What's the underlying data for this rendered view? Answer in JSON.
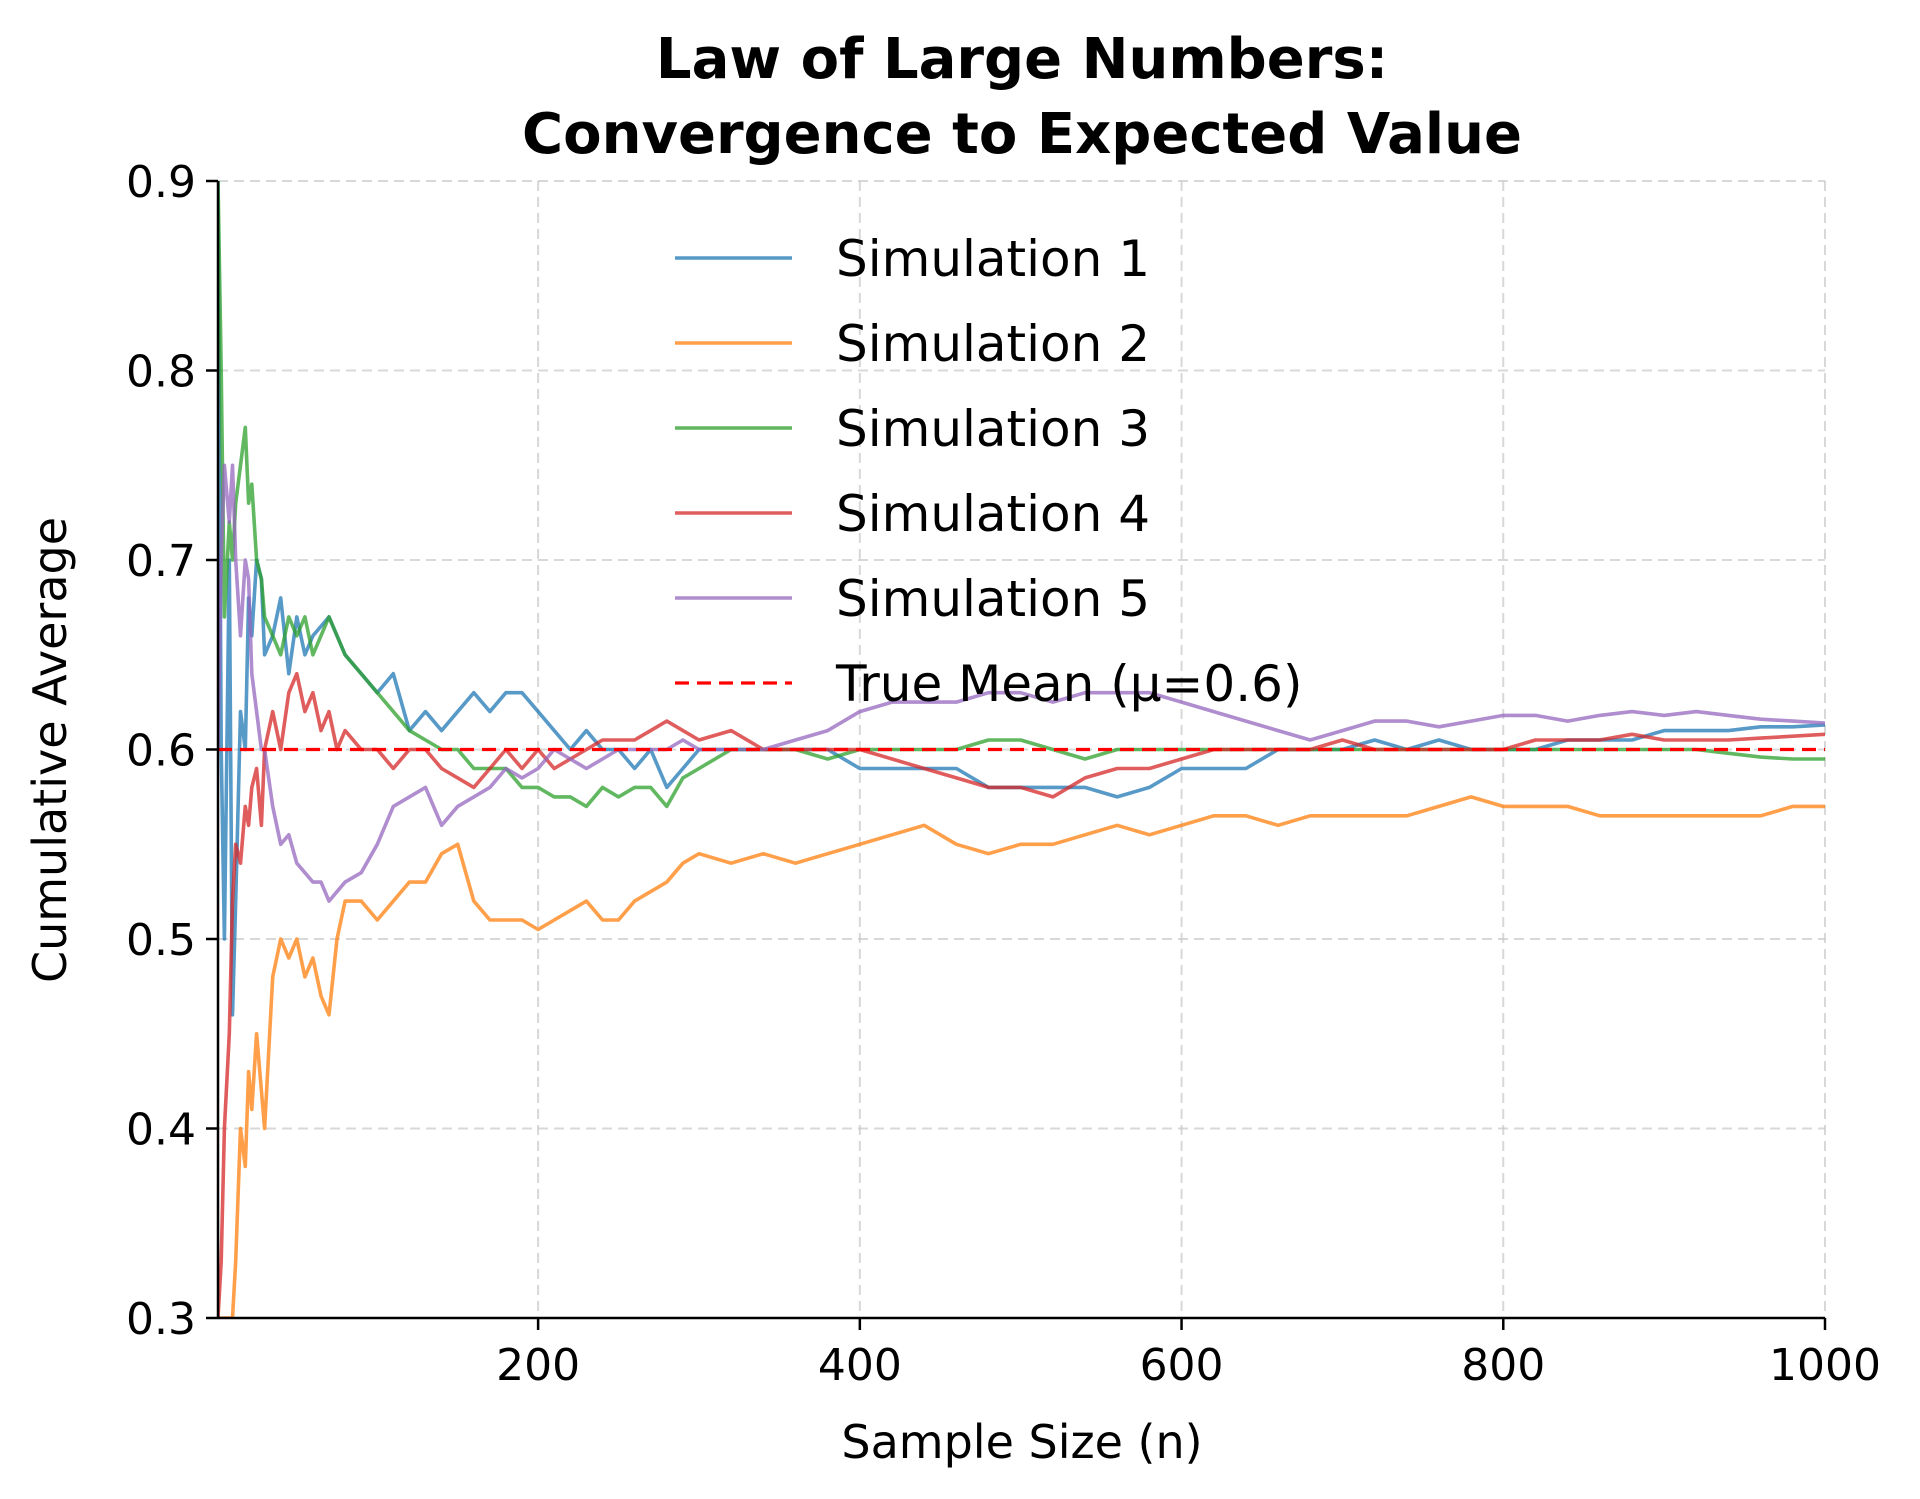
{
  "chart_data": {
    "type": "line",
    "title": [
      "Law of Large Numbers:",
      "Convergence to Expected Value"
    ],
    "xlabel": "Sample Size (n)",
    "ylabel": "Cumulative Average",
    "xlim": [
      1,
      1000
    ],
    "ylim": [
      0.3,
      0.9
    ],
    "xticks": [
      200,
      400,
      600,
      800,
      1000
    ],
    "yticks": [
      0.3,
      0.4,
      0.5,
      0.6,
      0.7,
      0.8,
      0.9
    ],
    "grid": true,
    "legend_position": "top-center",
    "series": [
      {
        "name": "Simulation 1",
        "color": "#1f77b4",
        "x": [
          1,
          3,
          5,
          8,
          10,
          12,
          15,
          18,
          20,
          22,
          25,
          28,
          30,
          35,
          40,
          45,
          50,
          55,
          60,
          70,
          80,
          90,
          100,
          110,
          120,
          130,
          140,
          150,
          160,
          170,
          180,
          190,
          200,
          210,
          220,
          230,
          240,
          250,
          260,
          270,
          280,
          290,
          300,
          320,
          340,
          360,
          380,
          400,
          420,
          440,
          460,
          480,
          500,
          520,
          540,
          560,
          580,
          600,
          620,
          640,
          660,
          680,
          700,
          720,
          740,
          760,
          780,
          800,
          820,
          840,
          860,
          880,
          900,
          920,
          940,
          960,
          980,
          1000
        ],
        "values": [
          0.9,
          0.6,
          0.5,
          0.7,
          0.46,
          0.52,
          0.62,
          0.6,
          0.68,
          0.66,
          0.7,
          0.69,
          0.65,
          0.66,
          0.68,
          0.64,
          0.67,
          0.65,
          0.66,
          0.67,
          0.65,
          0.64,
          0.63,
          0.64,
          0.61,
          0.62,
          0.61,
          0.62,
          0.63,
          0.62,
          0.63,
          0.63,
          0.62,
          0.61,
          0.6,
          0.61,
          0.6,
          0.6,
          0.59,
          0.6,
          0.58,
          0.59,
          0.6,
          0.6,
          0.6,
          0.6,
          0.6,
          0.59,
          0.59,
          0.59,
          0.59,
          0.58,
          0.58,
          0.58,
          0.58,
          0.575,
          0.58,
          0.59,
          0.59,
          0.59,
          0.6,
          0.6,
          0.6,
          0.605,
          0.6,
          0.605,
          0.6,
          0.6,
          0.6,
          0.605,
          0.605,
          0.605,
          0.61,
          0.61,
          0.61,
          0.612,
          0.612,
          0.613
        ]
      },
      {
        "name": "Simulation 2",
        "color": "#ff7f0e",
        "x": [
          1,
          3,
          5,
          8,
          10,
          12,
          15,
          18,
          20,
          22,
          25,
          28,
          30,
          35,
          40,
          45,
          50,
          55,
          60,
          65,
          70,
          75,
          80,
          90,
          100,
          110,
          120,
          130,
          140,
          150,
          160,
          170,
          180,
          190,
          200,
          210,
          220,
          230,
          240,
          250,
          260,
          270,
          280,
          290,
          300,
          320,
          340,
          360,
          380,
          400,
          420,
          440,
          460,
          480,
          500,
          520,
          540,
          560,
          580,
          600,
          620,
          640,
          660,
          680,
          700,
          720,
          740,
          760,
          780,
          800,
          820,
          840,
          860,
          880,
          900,
          920,
          940,
          960,
          980,
          1000
        ],
        "values": [
          0.3,
          0.3,
          0.3,
          0.3,
          0.3,
          0.33,
          0.4,
          0.38,
          0.43,
          0.41,
          0.45,
          0.42,
          0.4,
          0.48,
          0.5,
          0.49,
          0.5,
          0.48,
          0.49,
          0.47,
          0.46,
          0.5,
          0.52,
          0.52,
          0.51,
          0.52,
          0.53,
          0.53,
          0.545,
          0.55,
          0.52,
          0.51,
          0.51,
          0.51,
          0.505,
          0.51,
          0.515,
          0.52,
          0.51,
          0.51,
          0.52,
          0.525,
          0.53,
          0.54,
          0.545,
          0.54,
          0.545,
          0.54,
          0.545,
          0.55,
          0.555,
          0.56,
          0.55,
          0.545,
          0.55,
          0.55,
          0.555,
          0.56,
          0.555,
          0.56,
          0.565,
          0.565,
          0.56,
          0.565,
          0.565,
          0.565,
          0.565,
          0.57,
          0.575,
          0.57,
          0.57,
          0.57,
          0.565,
          0.565,
          0.565,
          0.565,
          0.565,
          0.565,
          0.57,
          0.57
        ]
      },
      {
        "name": "Simulation 3",
        "color": "#2ca02c",
        "x": [
          1,
          3,
          5,
          8,
          10,
          12,
          15,
          18,
          20,
          22,
          25,
          28,
          30,
          35,
          40,
          45,
          50,
          55,
          60,
          70,
          80,
          90,
          100,
          110,
          120,
          130,
          140,
          150,
          160,
          170,
          180,
          190,
          200,
          210,
          220,
          230,
          240,
          250,
          260,
          270,
          280,
          290,
          300,
          320,
          340,
          360,
          380,
          400,
          420,
          440,
          460,
          480,
          500,
          520,
          540,
          560,
          580,
          600,
          620,
          640,
          660,
          680,
          700,
          720,
          740,
          760,
          780,
          800,
          820,
          840,
          860,
          880,
          900,
          920,
          940,
          960,
          980,
          1000
        ],
        "values": [
          0.9,
          0.8,
          0.67,
          0.72,
          0.7,
          0.73,
          0.75,
          0.77,
          0.73,
          0.74,
          0.7,
          0.69,
          0.67,
          0.66,
          0.65,
          0.67,
          0.66,
          0.67,
          0.65,
          0.67,
          0.65,
          0.64,
          0.63,
          0.62,
          0.61,
          0.605,
          0.6,
          0.6,
          0.59,
          0.59,
          0.59,
          0.58,
          0.58,
          0.575,
          0.575,
          0.57,
          0.58,
          0.575,
          0.58,
          0.58,
          0.57,
          0.585,
          0.59,
          0.6,
          0.6,
          0.6,
          0.595,
          0.6,
          0.6,
          0.6,
          0.6,
          0.605,
          0.605,
          0.6,
          0.595,
          0.6,
          0.6,
          0.6,
          0.6,
          0.6,
          0.6,
          0.6,
          0.6,
          0.6,
          0.6,
          0.6,
          0.6,
          0.6,
          0.6,
          0.6,
          0.6,
          0.6,
          0.6,
          0.6,
          0.598,
          0.596,
          0.595,
          0.595
        ]
      },
      {
        "name": "Simulation 4",
        "color": "#d62728",
        "x": [
          1,
          3,
          5,
          8,
          10,
          12,
          15,
          18,
          20,
          22,
          25,
          28,
          30,
          35,
          40,
          45,
          50,
          55,
          60,
          65,
          70,
          75,
          80,
          90,
          100,
          110,
          120,
          130,
          140,
          150,
          160,
          170,
          180,
          190,
          200,
          210,
          220,
          230,
          240,
          250,
          260,
          270,
          280,
          290,
          300,
          320,
          340,
          360,
          380,
          400,
          420,
          440,
          460,
          480,
          500,
          520,
          540,
          560,
          580,
          600,
          620,
          640,
          660,
          680,
          700,
          720,
          740,
          760,
          780,
          800,
          820,
          840,
          860,
          880,
          900,
          920,
          940,
          960,
          980,
          1000
        ],
        "values": [
          0.3,
          0.33,
          0.4,
          0.45,
          0.52,
          0.55,
          0.54,
          0.57,
          0.56,
          0.58,
          0.59,
          0.56,
          0.6,
          0.62,
          0.6,
          0.63,
          0.64,
          0.62,
          0.63,
          0.61,
          0.62,
          0.6,
          0.61,
          0.6,
          0.6,
          0.59,
          0.6,
          0.6,
          0.59,
          0.585,
          0.58,
          0.59,
          0.6,
          0.59,
          0.6,
          0.59,
          0.595,
          0.6,
          0.605,
          0.605,
          0.605,
          0.61,
          0.615,
          0.61,
          0.605,
          0.61,
          0.6,
          0.6,
          0.6,
          0.6,
          0.595,
          0.59,
          0.585,
          0.58,
          0.58,
          0.575,
          0.585,
          0.59,
          0.59,
          0.595,
          0.6,
          0.6,
          0.6,
          0.6,
          0.605,
          0.6,
          0.6,
          0.6,
          0.6,
          0.6,
          0.605,
          0.605,
          0.605,
          0.608,
          0.605,
          0.605,
          0.605,
          0.606,
          0.607,
          0.608
        ]
      },
      {
        "name": "Simulation 5",
        "color": "#9467bd",
        "x": [
          1,
          3,
          5,
          8,
          10,
          12,
          15,
          18,
          20,
          22,
          25,
          28,
          30,
          35,
          40,
          45,
          50,
          55,
          60,
          65,
          70,
          75,
          80,
          90,
          100,
          110,
          120,
          130,
          140,
          150,
          160,
          170,
          180,
          190,
          200,
          210,
          220,
          230,
          240,
          250,
          260,
          270,
          280,
          290,
          300,
          320,
          340,
          360,
          380,
          400,
          420,
          440,
          460,
          480,
          500,
          520,
          540,
          560,
          580,
          600,
          620,
          640,
          660,
          680,
          700,
          720,
          740,
          760,
          780,
          800,
          820,
          840,
          860,
          880,
          900,
          920,
          940,
          960,
          980,
          1000
        ],
        "values": [
          0.6,
          0.7,
          0.75,
          0.72,
          0.75,
          0.7,
          0.66,
          0.7,
          0.69,
          0.64,
          0.62,
          0.6,
          0.6,
          0.57,
          0.55,
          0.555,
          0.54,
          0.535,
          0.53,
          0.53,
          0.52,
          0.525,
          0.53,
          0.535,
          0.55,
          0.57,
          0.575,
          0.58,
          0.56,
          0.57,
          0.575,
          0.58,
          0.59,
          0.585,
          0.59,
          0.6,
          0.595,
          0.59,
          0.595,
          0.6,
          0.6,
          0.6,
          0.6,
          0.605,
          0.6,
          0.6,
          0.6,
          0.605,
          0.61,
          0.62,
          0.625,
          0.625,
          0.625,
          0.63,
          0.63,
          0.625,
          0.63,
          0.63,
          0.63,
          0.625,
          0.62,
          0.615,
          0.61,
          0.605,
          0.61,
          0.615,
          0.615,
          0.612,
          0.615,
          0.618,
          0.618,
          0.615,
          0.618,
          0.62,
          0.618,
          0.62,
          0.618,
          0.616,
          0.615,
          0.614
        ]
      }
    ],
    "reference_line": {
      "name": "True Mean (μ=0.6)",
      "value": 0.6,
      "color": "#ff0000",
      "style": "dashed"
    }
  }
}
